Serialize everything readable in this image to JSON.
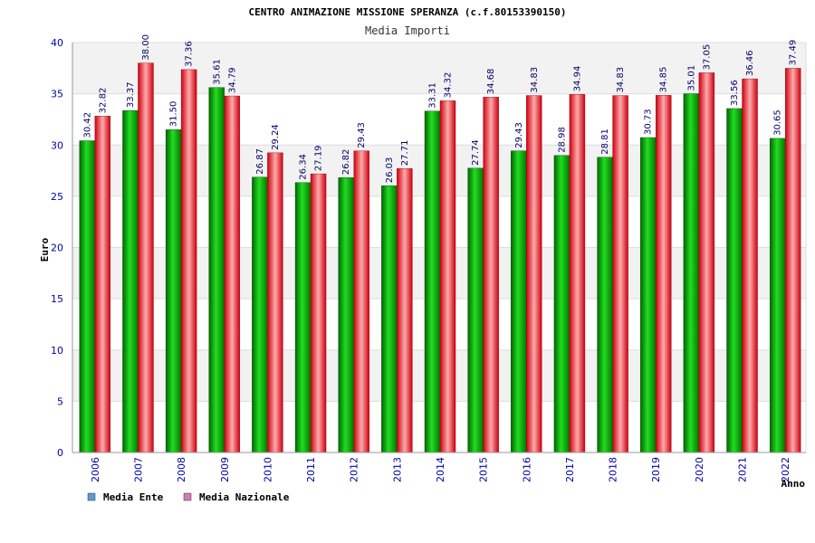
{
  "chart_data": {
    "type": "bar",
    "title": "CENTRO ANIMAZIONE MISSIONE SPERANZA (c.f.80153390150)",
    "subtitle": "Media Importi",
    "xlabel": "Anno",
    "ylabel": "Euro",
    "ylim": [
      0,
      40
    ],
    "yticks": [
      0,
      5,
      10,
      15,
      20,
      25,
      30,
      35,
      40
    ],
    "grid": true,
    "legend_position": "bottom-left",
    "categories": [
      "2006",
      "2007",
      "2008",
      "2009",
      "2010",
      "2011",
      "2012",
      "2013",
      "2014",
      "2015",
      "2016",
      "2017",
      "2018",
      "2019",
      "2020",
      "2021",
      "2022"
    ],
    "series": [
      {
        "name": "Media Ente",
        "legend_color": "#5b9bd5",
        "bar_color": "#00a000",
        "values": [
          30.42,
          33.37,
          31.5,
          35.61,
          26.87,
          26.34,
          26.82,
          26.03,
          33.31,
          27.74,
          29.43,
          28.98,
          28.81,
          30.73,
          35.01,
          33.56,
          30.65
        ],
        "labels": [
          "30.42",
          "33.37",
          "31.50",
          "35.61",
          "26.87",
          "26.34",
          "26.82",
          "26.03",
          "33.31",
          "27.74",
          "29.43",
          "28.98",
          "28.81",
          "30.73",
          "35.01",
          "33.56",
          "30.65"
        ]
      },
      {
        "name": "Media Nazionale",
        "legend_color": "#d47ab5",
        "bar_color": "#e8202a",
        "values": [
          32.82,
          38.0,
          37.36,
          34.79,
          29.24,
          27.19,
          29.43,
          27.71,
          34.32,
          34.68,
          34.83,
          34.94,
          34.83,
          34.85,
          37.05,
          36.46,
          37.49
        ],
        "labels": [
          "32.82",
          "38.00",
          "37.36",
          "34.79",
          "29.24",
          "27.19",
          "29.43",
          "27.71",
          "34.32",
          "34.68",
          "34.83",
          "34.94",
          "34.83",
          "34.85",
          "37.05",
          "36.46",
          "37.49"
        ]
      }
    ]
  }
}
